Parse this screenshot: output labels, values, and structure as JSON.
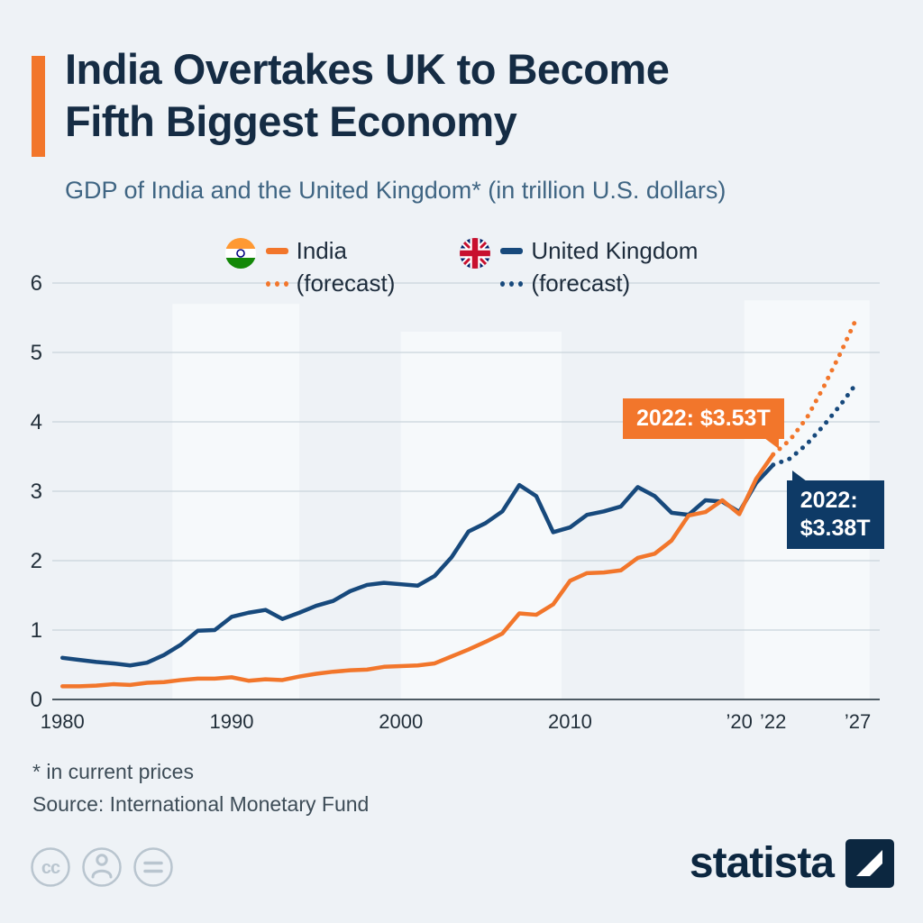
{
  "header": {
    "title_line1": "India Overtakes UK to Become",
    "title_line2": "Fifth Biggest Economy",
    "subtitle": "GDP of India and the United Kingdom* (in trillion U.S. dollars)"
  },
  "legend": {
    "india": {
      "label": "India",
      "forecast_label": "(forecast)",
      "color": "#f2762b"
    },
    "uk": {
      "label": "United Kingdom",
      "forecast_label": "(forecast)",
      "color": "#17497c"
    }
  },
  "annotations": {
    "india": {
      "id": "annotation-india",
      "line1": "2022: $3.53T",
      "year": 2022,
      "value": 3.53,
      "color": "#f2762b",
      "placement": "above-left"
    },
    "uk": {
      "id": "annotation-uk",
      "line1": "2022:",
      "line2": "$3.38T",
      "year": 2022,
      "value": 3.38,
      "color": "#0e3a66",
      "placement": "below-right"
    }
  },
  "chart_data": {
    "type": "line",
    "title": "GDP of India and the United Kingdom (in trillion U.S. dollars)",
    "xlabel": "",
    "ylabel": "",
    "xlim": [
      1979.4,
      2028.3
    ],
    "ylim": [
      0,
      6
    ],
    "y_ticks": [
      0,
      1,
      2,
      3,
      4,
      5,
      6
    ],
    "x_ticks": [
      {
        "x": 1980,
        "label": "1980"
      },
      {
        "x": 1990,
        "label": "1990"
      },
      {
        "x": 2000,
        "label": "2000"
      },
      {
        "x": 2010,
        "label": "2010"
      },
      {
        "x": 2020,
        "label": "’20"
      },
      {
        "x": 2022,
        "label": "’22"
      },
      {
        "x": 2027,
        "label": "’27"
      }
    ],
    "grid": true,
    "legend_position": "top",
    "band_color": "#f6f9fb",
    "grid_color": "#c9d4db",
    "baseline_color": "#4d5a63",
    "shaded_bands": [
      {
        "from": 1986.5,
        "to": 1994.0,
        "top": 5.7
      },
      {
        "from": 2000.0,
        "to": 2009.5,
        "top": 5.3
      },
      {
        "from": 2020.3,
        "to": 2027.7,
        "top": 5.75
      }
    ],
    "series": [
      {
        "id": "uk",
        "name": "United Kingdom",
        "color": "#17497c",
        "style": "solid",
        "x": [
          1980,
          1981,
          1982,
          1983,
          1984,
          1985,
          1986,
          1987,
          1988,
          1989,
          1990,
          1991,
          1992,
          1993,
          1994,
          1995,
          1996,
          1997,
          1998,
          1999,
          2000,
          2001,
          2002,
          2003,
          2004,
          2005,
          2006,
          2007,
          2008,
          2009,
          2010,
          2011,
          2012,
          2013,
          2014,
          2015,
          2016,
          2017,
          2018,
          2019,
          2020,
          2021,
          2022
        ],
        "values": [
          0.6,
          0.57,
          0.54,
          0.52,
          0.49,
          0.53,
          0.64,
          0.79,
          0.99,
          1.0,
          1.19,
          1.25,
          1.29,
          1.16,
          1.25,
          1.35,
          1.42,
          1.56,
          1.65,
          1.68,
          1.66,
          1.64,
          1.78,
          2.05,
          2.42,
          2.54,
          2.71,
          3.09,
          2.93,
          2.41,
          2.48,
          2.66,
          2.71,
          2.78,
          3.06,
          2.93,
          2.69,
          2.66,
          2.87,
          2.85,
          2.7,
          3.12,
          3.38
        ]
      },
      {
        "id": "uk-forecast",
        "name": "United Kingdom (forecast)",
        "color": "#17497c",
        "style": "dotted",
        "x": [
          2022,
          2023,
          2024,
          2025,
          2026,
          2027
        ],
        "values": [
          3.38,
          3.47,
          3.68,
          3.95,
          4.25,
          4.58
        ]
      },
      {
        "id": "india",
        "name": "India",
        "color": "#f2762b",
        "style": "solid",
        "x": [
          1980,
          1981,
          1982,
          1983,
          1984,
          1985,
          1986,
          1987,
          1988,
          1989,
          1990,
          1991,
          1992,
          1993,
          1994,
          1995,
          1996,
          1997,
          1998,
          1999,
          2000,
          2001,
          2002,
          2003,
          2004,
          2005,
          2006,
          2007,
          2008,
          2009,
          2010,
          2011,
          2012,
          2013,
          2014,
          2015,
          2016,
          2017,
          2018,
          2019,
          2020,
          2021,
          2022
        ],
        "values": [
          0.19,
          0.19,
          0.2,
          0.22,
          0.21,
          0.24,
          0.25,
          0.28,
          0.3,
          0.3,
          0.32,
          0.27,
          0.29,
          0.28,
          0.33,
          0.37,
          0.4,
          0.42,
          0.43,
          0.47,
          0.48,
          0.49,
          0.52,
          0.62,
          0.72,
          0.83,
          0.95,
          1.24,
          1.22,
          1.37,
          1.71,
          1.82,
          1.83,
          1.86,
          2.04,
          2.1,
          2.29,
          2.65,
          2.7,
          2.87,
          2.67,
          3.18,
          3.53
        ]
      },
      {
        "id": "india-forecast",
        "name": "India (forecast)",
        "color": "#f2762b",
        "style": "dotted",
        "x": [
          2022,
          2023,
          2024,
          2025,
          2026,
          2027
        ],
        "values": [
          3.53,
          3.74,
          4.06,
          4.51,
          5.0,
          5.53
        ]
      }
    ]
  },
  "footnotes": {
    "note": "* in current prices",
    "source": "Source: International Monetary Fund"
  },
  "footer": {
    "brand": "statista"
  }
}
